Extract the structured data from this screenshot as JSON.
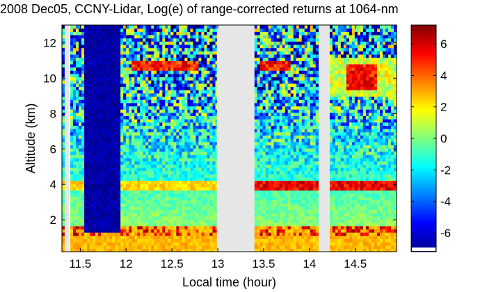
{
  "chart_data": {
    "type": "heatmap",
    "title": "2008 Dec05, CCNY-Lidar, Log(e) of range-corrected returns at 1064-nm",
    "xlabel": "Local time (hour)",
    "ylabel": "Altitude (km)",
    "xlim": [
      11.3,
      14.95
    ],
    "ylim": [
      0.2,
      13.0
    ],
    "xticks": [
      11.5,
      12,
      12.5,
      13,
      13.5,
      14,
      14.5
    ],
    "xtick_labels": [
      "11.5",
      "12",
      "12.5",
      "13",
      "13.5",
      "14",
      "14.5"
    ],
    "yticks": [
      2,
      4,
      6,
      8,
      10,
      12
    ],
    "ytick_labels": [
      "2",
      "4",
      "6",
      "8",
      "10",
      "12"
    ],
    "colorbar": {
      "colormap": "jet",
      "range": [
        -7.2,
        7.2
      ],
      "ticks": [
        6,
        4,
        2,
        0,
        -2,
        -4,
        -6
      ],
      "tick_labels": [
        "6",
        "4",
        "2",
        "0",
        "-2",
        "-4",
        "-6"
      ]
    },
    "missing_data_color": "#e6e6e6",
    "data_gaps": [
      {
        "start": 11.33,
        "end": 11.38
      },
      {
        "start": 12.99,
        "end": 13.4
      },
      {
        "start": 14.1,
        "end": 14.22
      }
    ],
    "features": [
      {
        "name": "boundary layer",
        "altitude_km": [
          0.3,
          1.7
        ],
        "typical_value": 2.5
      },
      {
        "name": "aerosol layer",
        "altitude_km": [
          3.7,
          4.2
        ],
        "typical_value": 4.5
      },
      {
        "name": "cirrus clouds",
        "altitude_km": [
          9.5,
          11.0
        ],
        "typical_value": 5.0
      },
      {
        "name": "low-signal column",
        "time_hour": [
          11.55,
          11.95
        ],
        "typical_value": -6.5
      }
    ],
    "grid": false
  }
}
